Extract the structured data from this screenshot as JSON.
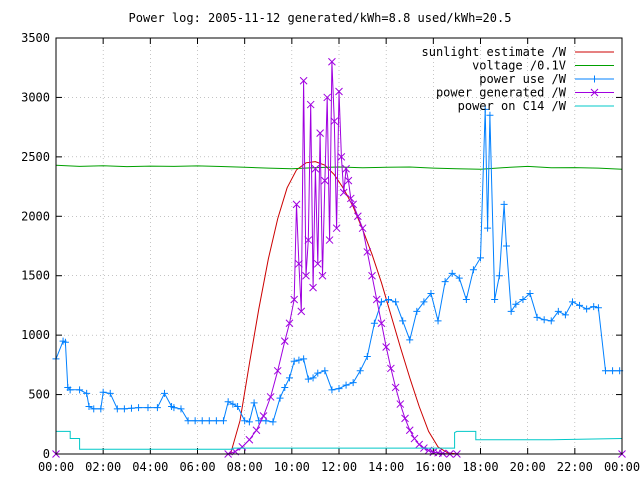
{
  "chart_data": {
    "type": "line",
    "title": "Power log: 2005-11-12 generated/kWh=8.8 used/kWh=20.5",
    "xlabel": "",
    "ylabel": "",
    "x_ticks": [
      "00:00",
      "02:00",
      "04:00",
      "06:00",
      "08:00",
      "10:00",
      "12:00",
      "14:00",
      "16:00",
      "18:00",
      "20:00",
      "22:00",
      "00:00"
    ],
    "y_ticks": [
      0,
      500,
      1000,
      1500,
      2000,
      2500,
      3000,
      3500
    ],
    "xlim": [
      0,
      24
    ],
    "ylim": [
      0,
      3500
    ],
    "grid": true,
    "legend_position": "top-right",
    "series": [
      {
        "name": "sunlight estimate /W",
        "color": "#cc0000",
        "marker": "none",
        "x": [
          0,
          7.4,
          7.8,
          8.2,
          8.6,
          9.0,
          9.4,
          9.8,
          10.2,
          10.6,
          11.0,
          11.4,
          11.8,
          12.2,
          12.6,
          13.0,
          13.4,
          13.8,
          14.2,
          14.6,
          15.0,
          15.4,
          15.8,
          16.2,
          16.6,
          17.0,
          24
        ],
        "y": [
          0,
          0,
          280,
          760,
          1220,
          1640,
          1980,
          2240,
          2390,
          2450,
          2460,
          2430,
          2350,
          2230,
          2080,
          1890,
          1680,
          1440,
          1170,
          900,
          640,
          400,
          190,
          60,
          10,
          0,
          0
        ]
      },
      {
        "name": "voltage /0.1V",
        "color": "#00a000",
        "marker": "none",
        "x": [
          0,
          1,
          2,
          3,
          4,
          5,
          6,
          7,
          8,
          9,
          10,
          11,
          12,
          13,
          14,
          15,
          16,
          17,
          18,
          19,
          20,
          21,
          22,
          23,
          24
        ],
        "y": [
          2430,
          2420,
          2425,
          2418,
          2422,
          2420,
          2424,
          2419,
          2412,
          2405,
          2400,
          2410,
          2415,
          2408,
          2412,
          2415,
          2405,
          2400,
          2395,
          2410,
          2420,
          2408,
          2410,
          2405,
          2395
        ]
      },
      {
        "name": "power use /W",
        "color": "#0080ff",
        "marker": "plus",
        "x": [
          0.0,
          0.3,
          0.4,
          0.5,
          0.6,
          1.0,
          1.3,
          1.4,
          1.6,
          1.9,
          2.0,
          2.3,
          2.6,
          2.9,
          3.2,
          3.5,
          3.9,
          4.3,
          4.6,
          4.9,
          5.0,
          5.3,
          5.6,
          5.9,
          6.2,
          6.5,
          6.8,
          7.1,
          7.3,
          7.5,
          7.7,
          8.0,
          8.2,
          8.4,
          8.6,
          8.9,
          9.2,
          9.5,
          9.7,
          9.9,
          10.1,
          10.3,
          10.5,
          10.7,
          10.9,
          11.1,
          11.4,
          11.7,
          12.0,
          12.3,
          12.6,
          12.9,
          13.2,
          13.5,
          13.8,
          14.1,
          14.4,
          14.7,
          15.0,
          15.3,
          15.6,
          15.9,
          16.2,
          16.5,
          16.8,
          17.1,
          17.4,
          17.7,
          18.0,
          18.2,
          18.3,
          18.4,
          18.6,
          18.8,
          19.0,
          19.1,
          19.3,
          19.5,
          19.8,
          20.1,
          20.4,
          20.7,
          21.0,
          21.3,
          21.6,
          21.9,
          22.2,
          22.5,
          22.8,
          23.0,
          23.3,
          23.6,
          23.9
        ],
        "y": [
          800,
          950,
          940,
          560,
          540,
          540,
          510,
          400,
          380,
          380,
          520,
          510,
          380,
          380,
          385,
          390,
          390,
          390,
          510,
          400,
          390,
          380,
          280,
          280,
          280,
          280,
          280,
          280,
          440,
          420,
          400,
          280,
          270,
          430,
          280,
          280,
          270,
          470,
          560,
          640,
          780,
          790,
          800,
          630,
          640,
          680,
          700,
          540,
          550,
          580,
          600,
          700,
          820,
          1100,
          1280,
          1300,
          1280,
          1120,
          960,
          1200,
          1280,
          1350,
          1120,
          1450,
          1520,
          1480,
          1300,
          1550,
          1650,
          2900,
          1900,
          2850,
          1300,
          1500,
          2100,
          1750,
          1200,
          1260,
          1300,
          1350,
          1150,
          1130,
          1120,
          1200,
          1170,
          1280,
          1250,
          1220,
          1240,
          1230,
          700,
          700,
          700
        ]
      },
      {
        "name": "power generated /W",
        "color": "#a000e0",
        "marker": "x",
        "x": [
          0,
          7.3,
          7.6,
          7.9,
          8.2,
          8.5,
          8.8,
          9.1,
          9.4,
          9.7,
          9.9,
          10.1,
          10.2,
          10.3,
          10.4,
          10.5,
          10.6,
          10.7,
          10.8,
          10.9,
          11.0,
          11.1,
          11.2,
          11.3,
          11.4,
          11.5,
          11.6,
          11.7,
          11.8,
          11.9,
          12.0,
          12.1,
          12.2,
          12.3,
          12.4,
          12.5,
          12.6,
          12.8,
          13.0,
          13.2,
          13.4,
          13.6,
          13.8,
          14.0,
          14.2,
          14.4,
          14.6,
          14.8,
          15.0,
          15.2,
          15.4,
          15.6,
          15.8,
          16.0,
          16.2,
          16.4,
          16.7,
          17.0,
          24
        ],
        "y": [
          0,
          0,
          20,
          60,
          120,
          200,
          320,
          480,
          700,
          950,
          1100,
          1300,
          2100,
          1600,
          1200,
          3140,
          1500,
          1800,
          2940,
          1400,
          2400,
          1600,
          2700,
          1500,
          2300,
          3000,
          1800,
          3300,
          2800,
          1900,
          3050,
          2500,
          2200,
          2400,
          2300,
          2150,
          2100,
          2000,
          1900,
          1700,
          1500,
          1300,
          1100,
          900,
          720,
          560,
          420,
          300,
          200,
          130,
          80,
          50,
          30,
          15,
          10,
          5,
          0,
          0,
          0
        ]
      },
      {
        "name": "power on C14 /W",
        "color": "#00c8c8",
        "marker": "none",
        "x": [
          0,
          0.6,
          0.6,
          1.0,
          1.0,
          7.5,
          7.5,
          16.9,
          16.9,
          17.0,
          17.8,
          17.8,
          21.0,
          24
        ],
        "y": [
          190,
          190,
          130,
          130,
          40,
          40,
          50,
          50,
          180,
          190,
          190,
          120,
          120,
          130
        ]
      }
    ]
  }
}
